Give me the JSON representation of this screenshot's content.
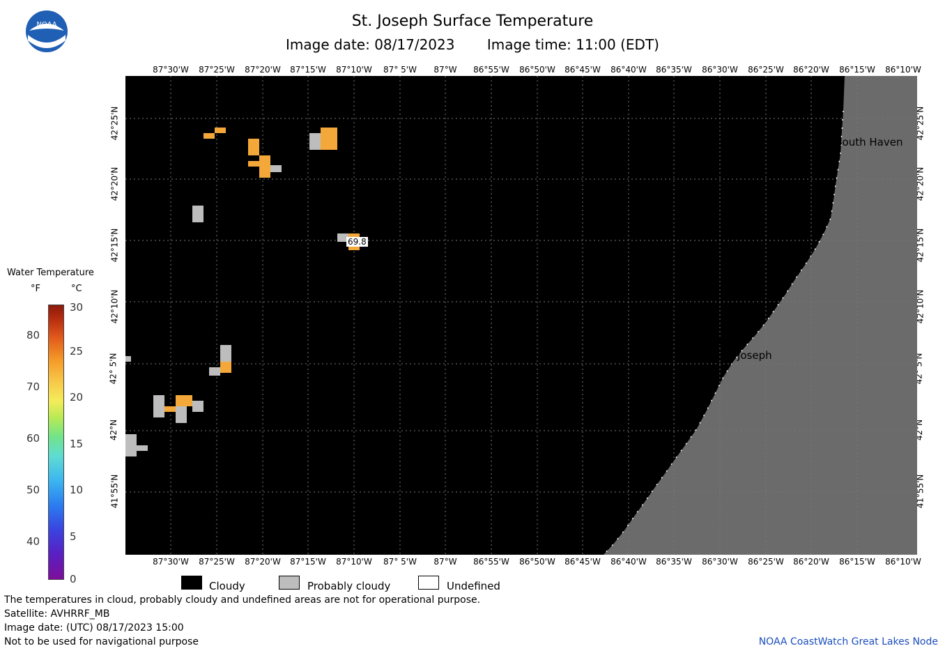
{
  "header": {
    "title": "St. Joseph Surface Temperature",
    "image_date": "Image date: 08/17/2023",
    "image_time": "Image time: 11:00 (EDT)",
    "logo_text": "NOAA"
  },
  "map": {
    "lon_ticks": [
      "87°30'W",
      "87°25'W",
      "87°20'W",
      "87°15'W",
      "87°10'W",
      "87° 5'W",
      "87°W",
      "86°55'W",
      "86°50'W",
      "86°45'W",
      "86°40'W",
      "86°35'W",
      "86°30'W",
      "86°25'W",
      "86°20'W",
      "86°15'W",
      "86°10'W"
    ],
    "lat_ticks": [
      "42°25'N",
      "42°20'N",
      "42°15'N",
      "42°10'N",
      "42° 5'N",
      "42°N",
      "41°55'N"
    ],
    "places": [
      "South Haven",
      "St. Joseph"
    ],
    "sample_value": "69.8",
    "colors": {
      "water": "#000000",
      "land": "#6b6b6b",
      "warm": "#f5a83a",
      "probably_cloudy": "#bdbdbd",
      "grid": "#777777"
    }
  },
  "scale": {
    "title": "Water Temperature",
    "unit_f": "°F",
    "unit_c": "°C",
    "f_ticks": [
      "80",
      "70",
      "60",
      "50",
      "40"
    ],
    "c_ticks": [
      "30",
      "25",
      "20",
      "15",
      "10",
      "5",
      "0"
    ]
  },
  "legend": {
    "cloudy": "Cloudy",
    "probably_cloudy": "Probably cloudy",
    "undefined": "Undefined"
  },
  "footer": {
    "line1": "The temperatures in cloud, probably cloudy and undefined areas are not for operational purpose.",
    "line2": "Satellite: AVHRRF_MB",
    "line3": "Image date: (UTC) 08/17/2023  15:00",
    "line4": "Not to be used for navigational purpose",
    "credit": "NOAA CoastWatch Great Lakes Node"
  }
}
